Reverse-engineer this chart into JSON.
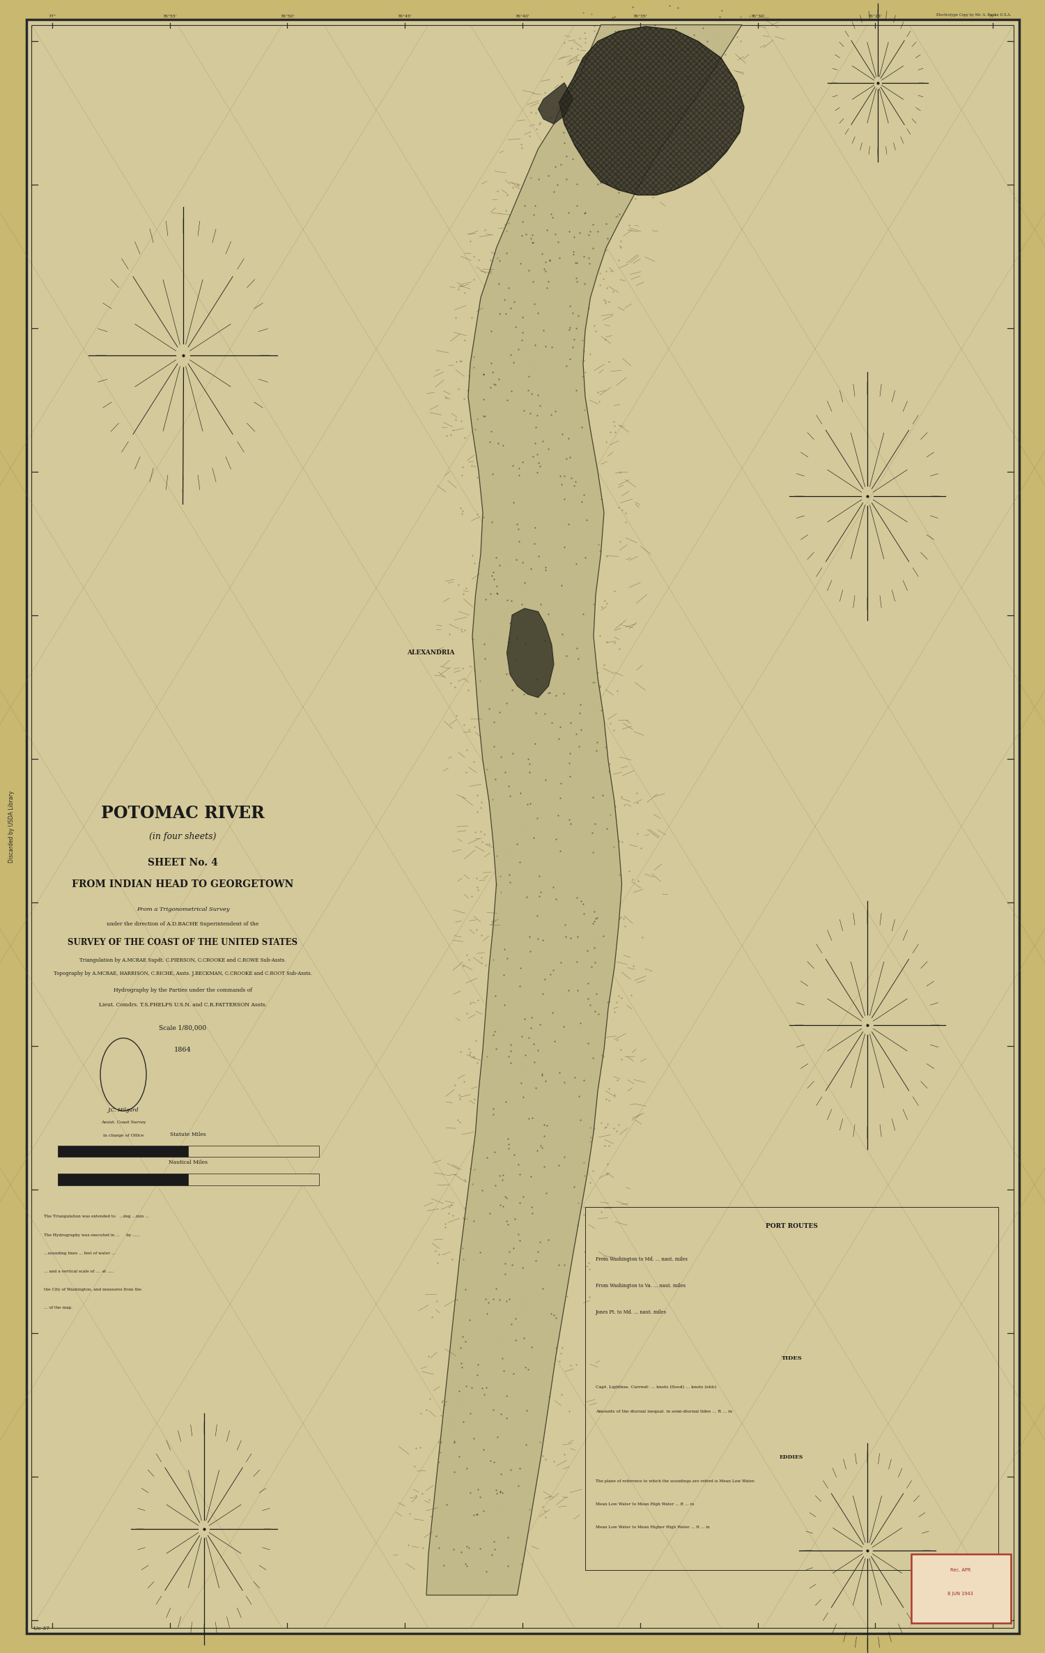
{
  "background_color": "#d4c99a",
  "paper_color": "#d9cc96",
  "border_color": "#2a2a2a",
  "map_bg": "#d4c99a",
  "title_line1": "POTOMAC RIVER",
  "title_line2": "(in four sheets)",
  "title_line3": "SHEET No. 4",
  "title_line4": "FROM INDIAN HEAD TO GEORGETOWN",
  "subtitle1": "From a Trigonometrical Survey",
  "subtitle2": "under the direction of A.D.BACHE Superintendent of the",
  "subtitle3": "SURVEY OF THE COAST OF THE UNITED STATES",
  "subtitle4": "Triangulation by A.MCRAE Supdt. C.PIERSON, C.CROOKE and C.ROWE Sub-Assts.",
  "subtitle5": "Topography by A.MCRAE, HARRISON, C.RICHE, Assts. J.BECKMAN, C.CROOKE and C.ROOT Sub-Assts.",
  "subtitle6": "Hydrography by the Parties under the commands of",
  "subtitle7": "Lieut. Comdrs. T.S.PHELPS U.S.N. and C.R.PATTERSON Assts.",
  "subtitle8": "Scale 1/80,000",
  "year": "1864",
  "side_text": "Discarded by USDA Library",
  "fig_width": 15.0,
  "fig_height": 23.72,
  "outer_bg": "#c8b870",
  "inner_bg": "#d4c99a",
  "grid_color": "#8a7a50",
  "text_color": "#1a1a1a"
}
